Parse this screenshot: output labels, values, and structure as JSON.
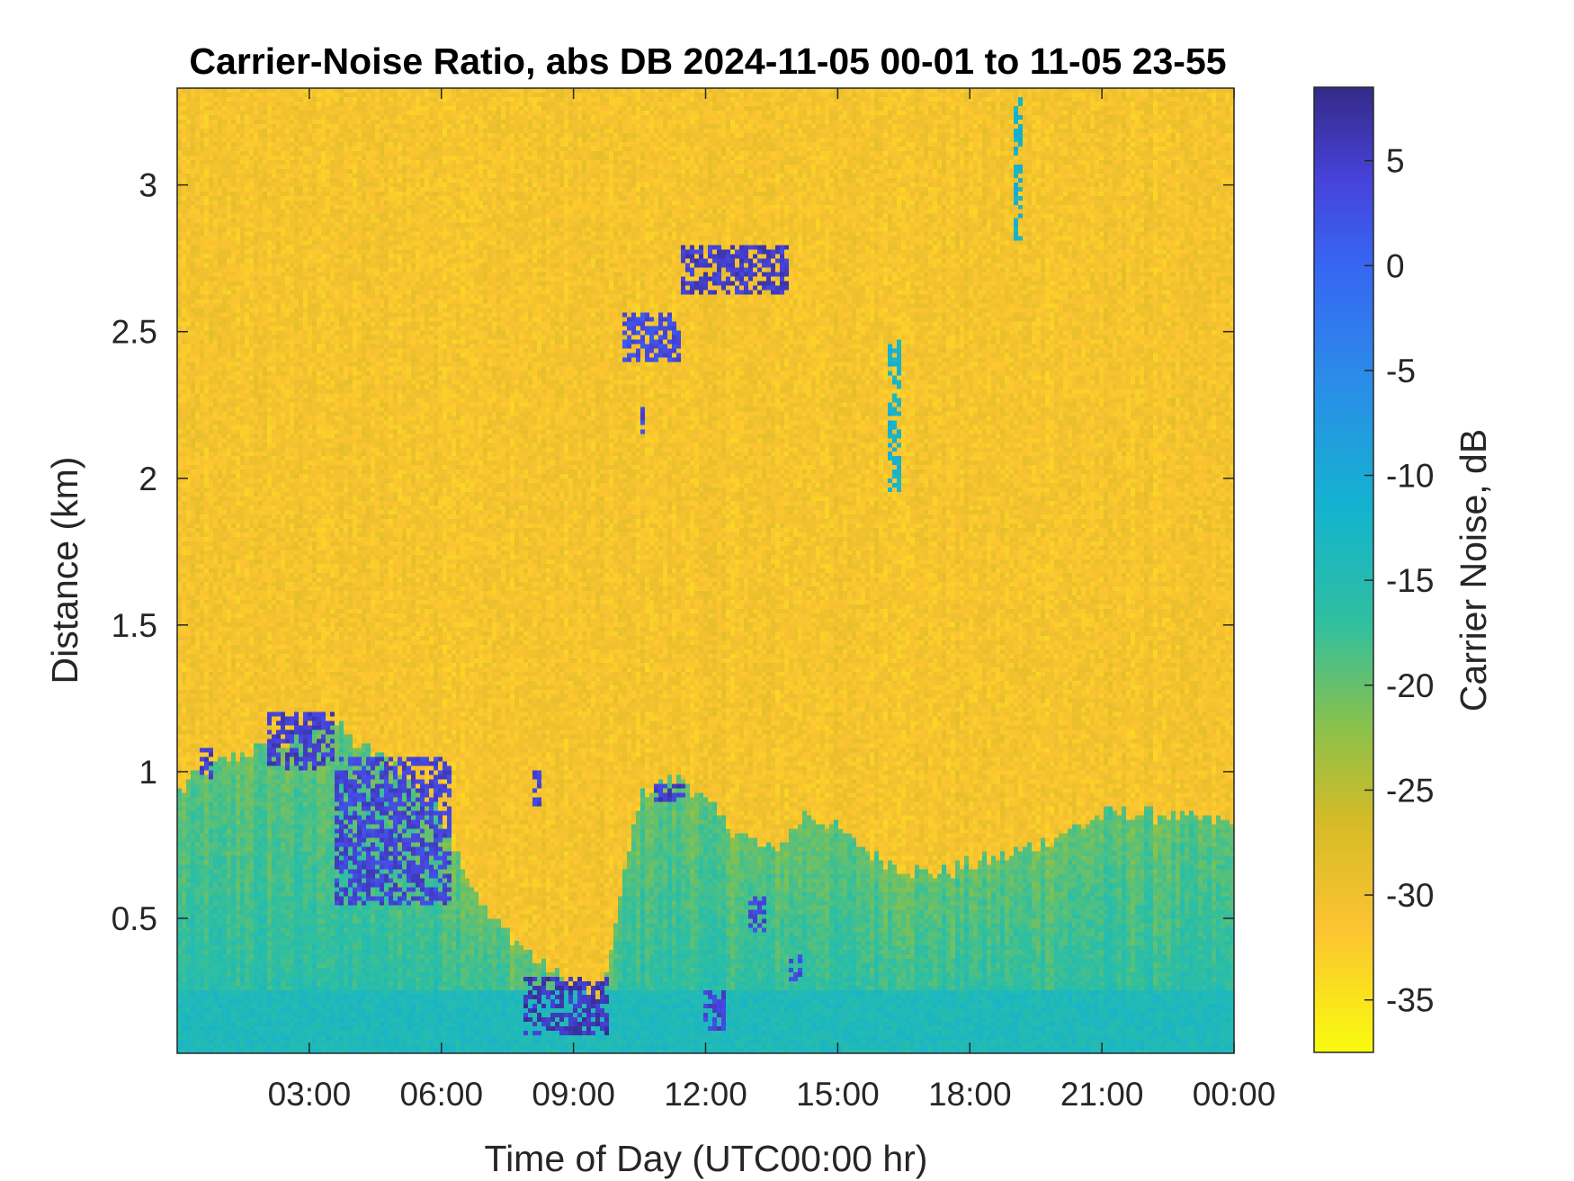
{
  "chart_data": {
    "type": "heatmap",
    "title": "Carrier-Noise Ratio, abs DB 2024-11-05 00-01 to 11-05 23-55",
    "xlabel": "Time of Day (UTC00:00 hr)",
    "ylabel": "Distance (km)",
    "colorbar_label": "Carrier Noise, dB",
    "x_unit": "hours UTC",
    "xlim": [
      0,
      24
    ],
    "ylim": [
      0.04,
      3.33
    ],
    "clim": [
      -37.5,
      8.5
    ],
    "x_ticks": [
      {
        "value": 3,
        "label": "03:00"
      },
      {
        "value": 6,
        "label": "06:00"
      },
      {
        "value": 9,
        "label": "09:00"
      },
      {
        "value": 12,
        "label": "12:00"
      },
      {
        "value": 15,
        "label": "15:00"
      },
      {
        "value": 18,
        "label": "18:00"
      },
      {
        "value": 21,
        "label": "21:00"
      },
      {
        "value": 24,
        "label": "00:00"
      }
    ],
    "y_ticks": [
      {
        "value": 0.5,
        "label": "0.5"
      },
      {
        "value": 1,
        "label": "1"
      },
      {
        "value": 1.5,
        "label": "1.5"
      },
      {
        "value": 2,
        "label": "2"
      },
      {
        "value": 2.5,
        "label": "2.5"
      },
      {
        "value": 3,
        "label": "3"
      }
    ],
    "colorbar_ticks": [
      {
        "value": 5,
        "label": "5"
      },
      {
        "value": 0,
        "label": "0"
      },
      {
        "value": -5,
        "label": "-5"
      },
      {
        "value": -10,
        "label": "-10"
      },
      {
        "value": -15,
        "label": "-15"
      },
      {
        "value": -20,
        "label": "-20"
      },
      {
        "value": -25,
        "label": "-25"
      },
      {
        "value": -30,
        "label": "-30"
      },
      {
        "value": -35,
        "label": "-35"
      }
    ],
    "colormap": "parula",
    "colormap_stops": [
      {
        "value": -37.5,
        "color": "#f9fb0e"
      },
      {
        "value": -31.5,
        "color": "#fbc331"
      },
      {
        "value": -26.5,
        "color": "#d5bb27"
      },
      {
        "value": -22.0,
        "color": "#8ac14b"
      },
      {
        "value": -17.0,
        "color": "#2fbfa0"
      },
      {
        "value": -11.5,
        "color": "#13b3cf"
      },
      {
        "value": -5.5,
        "color": "#2b8ce9"
      },
      {
        "value": 0.0,
        "color": "#3666f2"
      },
      {
        "value": 4.0,
        "color": "#4743dc"
      },
      {
        "value": 8.5,
        "color": "#352a87"
      }
    ],
    "background_value_db": -31,
    "boundary_layer_top_km": [
      [
        0.0,
        0.92
      ],
      [
        0.5,
        1.0
      ],
      [
        1.5,
        1.06
      ],
      [
        2.5,
        1.1
      ],
      [
        3.3,
        1.2
      ],
      [
        4.0,
        1.1
      ],
      [
        5.0,
        1.02
      ],
      [
        6.0,
        0.85
      ],
      [
        7.0,
        0.52
      ],
      [
        8.0,
        0.38
      ],
      [
        8.8,
        0.28
      ],
      [
        9.6,
        0.2
      ],
      [
        10.5,
        0.92
      ],
      [
        11.5,
        0.98
      ],
      [
        12.5,
        0.82
      ],
      [
        13.5,
        0.72
      ],
      [
        14.3,
        0.86
      ],
      [
        15.0,
        0.8
      ],
      [
        16.0,
        0.7
      ],
      [
        17.0,
        0.65
      ],
      [
        18.0,
        0.68
      ],
      [
        19.0,
        0.72
      ],
      [
        20.0,
        0.78
      ],
      [
        21.0,
        0.85
      ],
      [
        22.0,
        0.86
      ],
      [
        23.0,
        0.84
      ],
      [
        24.0,
        0.82
      ]
    ],
    "strong_return_features": [
      {
        "time_h": [
          0.55,
          0.85
        ],
        "distance_km": [
          0.98,
          1.08
        ],
        "value_db": 5
      },
      {
        "time_h": [
          2.0,
          3.6
        ],
        "distance_km": [
          1.0,
          1.2
        ],
        "value_db": 5
      },
      {
        "time_h": [
          3.6,
          6.2
        ],
        "distance_km": [
          0.55,
          1.05
        ],
        "value_db": 4
      },
      {
        "time_h": [
          7.9,
          9.8
        ],
        "distance_km": [
          0.1,
          0.3
        ],
        "value_db": 6
      },
      {
        "time_h": [
          8.1,
          8.3
        ],
        "distance_km": [
          0.88,
          1.0
        ],
        "value_db": 4
      },
      {
        "time_h": [
          10.1,
          11.4
        ],
        "distance_km": [
          2.4,
          2.56
        ],
        "value_db": 3
      },
      {
        "time_h": [
          11.4,
          13.9
        ],
        "distance_km": [
          2.62,
          2.8
        ],
        "value_db": 5
      },
      {
        "time_h": [
          10.8,
          11.5
        ],
        "distance_km": [
          0.9,
          0.96
        ],
        "value_db": 5
      },
      {
        "time_h": [
          12.0,
          12.5
        ],
        "distance_km": [
          0.12,
          0.25
        ],
        "value_db": 4
      },
      {
        "time_h": [
          13.0,
          13.4
        ],
        "distance_km": [
          0.45,
          0.58
        ],
        "value_db": 4
      },
      {
        "time_h": [
          13.9,
          14.2
        ],
        "distance_km": [
          0.28,
          0.38
        ],
        "value_db": 3
      },
      {
        "time_h": [
          16.1,
          16.4
        ],
        "distance_km": [
          1.95,
          2.48
        ],
        "value_db": -12
      },
      {
        "time_h": [
          19.0,
          19.2
        ],
        "distance_km": [
          2.8,
          3.3
        ],
        "value_db": -12
      },
      {
        "time_h": [
          10.5,
          10.6
        ],
        "distance_km": [
          2.15,
          2.25
        ],
        "value_db": 3
      }
    ]
  }
}
